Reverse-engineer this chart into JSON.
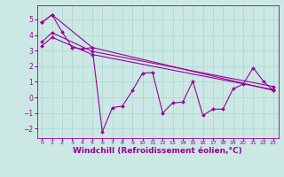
{
  "background_color": "#cce8e4",
  "grid_color": "#aad4d0",
  "line_color": "#990099",
  "marker_color": "#990099",
  "xlabel": "Windchill (Refroidissement éolien,°C)",
  "xlim": [
    -0.5,
    23.5
  ],
  "ylim": [
    -2.6,
    5.9
  ],
  "yticks": [
    -2,
    -1,
    0,
    1,
    2,
    3,
    4,
    5
  ],
  "xticks": [
    0,
    1,
    2,
    3,
    4,
    5,
    6,
    7,
    8,
    9,
    10,
    11,
    12,
    13,
    14,
    15,
    16,
    17,
    18,
    19,
    20,
    21,
    22,
    23
  ],
  "trend1_x": [
    0,
    1,
    5,
    23
  ],
  "trend1_y": [
    4.8,
    5.3,
    3.2,
    0.45
  ],
  "trend2_x": [
    0,
    1,
    5,
    23
  ],
  "trend2_y": [
    3.55,
    4.15,
    2.95,
    0.7
  ],
  "trend3_x": [
    0,
    1,
    5,
    23
  ],
  "trend3_y": [
    3.3,
    3.85,
    2.75,
    0.5
  ],
  "main_x": [
    0,
    1,
    2,
    3,
    4,
    5,
    6,
    7,
    8,
    9,
    10,
    11,
    12,
    13,
    14,
    15,
    16,
    17,
    18,
    19,
    20,
    21,
    22,
    23
  ],
  "main_y": [
    4.8,
    5.3,
    4.2,
    3.2,
    3.1,
    3.2,
    -2.2,
    -0.65,
    -0.55,
    0.45,
    1.55,
    1.6,
    -1.0,
    -0.35,
    -0.3,
    1.05,
    -1.15,
    -0.75,
    -0.75,
    0.55,
    0.85,
    1.9,
    1.05,
    0.45
  ]
}
